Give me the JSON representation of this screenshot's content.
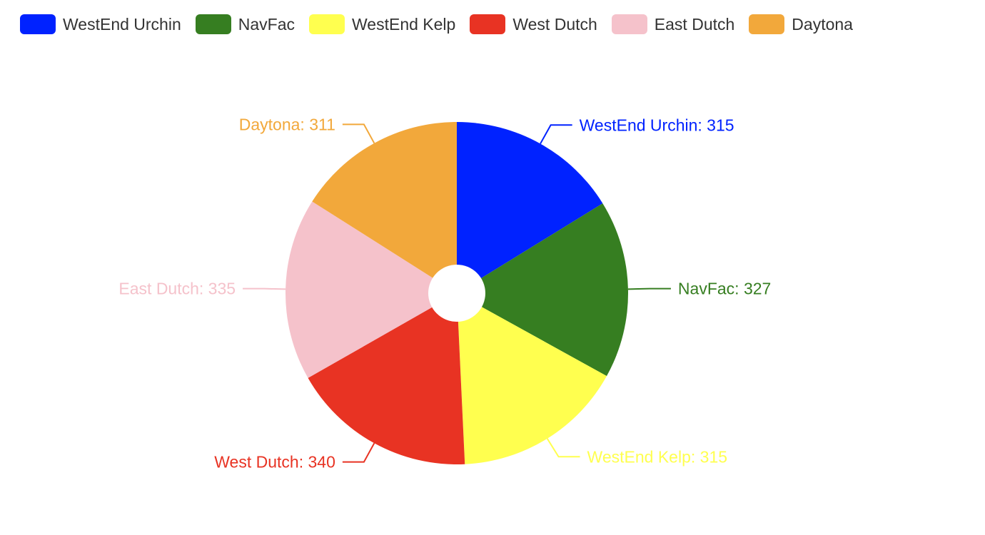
{
  "chart_data": {
    "type": "pie",
    "donut": true,
    "title": "",
    "legend_position": "top-left",
    "series": [
      {
        "name": "WestEnd Urchin",
        "value": 315,
        "color": "#0022ff"
      },
      {
        "name": "NavFac",
        "value": 327,
        "color": "#367e21"
      },
      {
        "name": "WestEnd Kelp",
        "value": 315,
        "color": "#ffff4f"
      },
      {
        "name": "West Dutch",
        "value": 340,
        "color": "#e83323"
      },
      {
        "name": "East Dutch",
        "value": 335,
        "color": "#f5c2cb"
      },
      {
        "name": "Daytona",
        "value": 311,
        "color": "#f2a83b"
      }
    ],
    "labels": [
      "WestEnd Urchin: 315",
      "NavFac: 327",
      "WestEnd Kelp: 315",
      "West Dutch: 340",
      "East Dutch: 335",
      "Daytona: 311"
    ]
  }
}
